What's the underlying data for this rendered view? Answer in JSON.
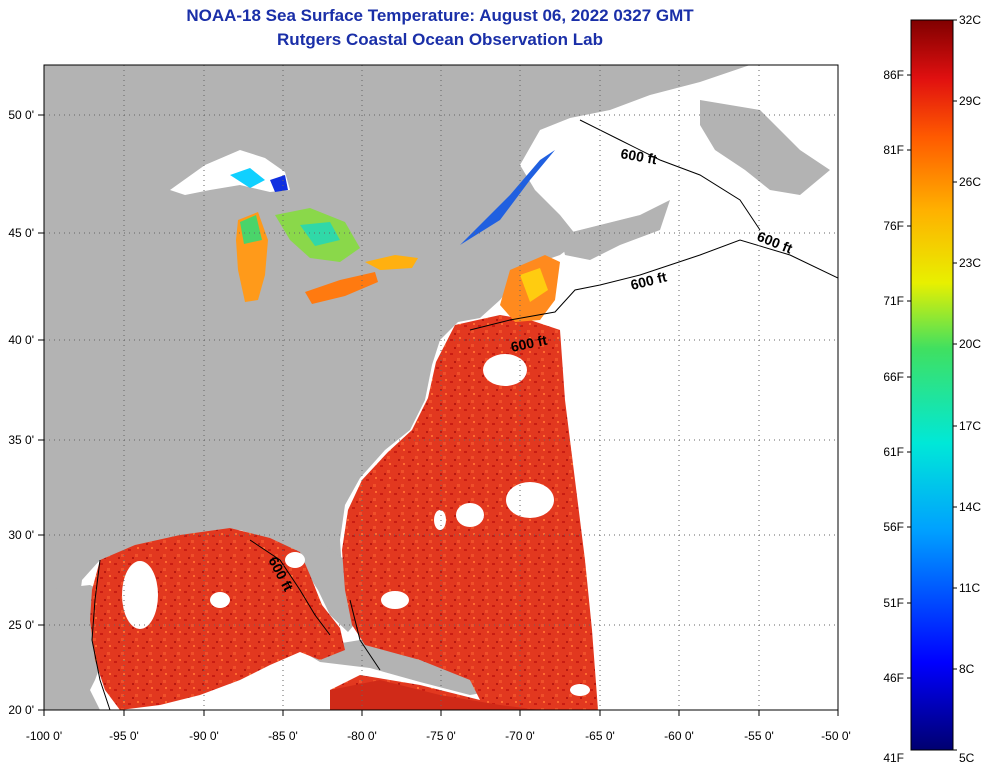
{
  "title_line1": "NOAA-18 Sea Surface Temperature:  August 06, 2022 0327 GMT",
  "title_line2": "Rutgers Coastal Ocean Observation Lab",
  "x_ticks": [
    "-100 0'",
    "-95 0'",
    "-90 0'",
    "-85 0'",
    "-80 0'",
    "-75 0'",
    "-70 0'",
    "-65 0'",
    "-60 0'",
    "-55 0'",
    "-50 0'"
  ],
  "y_ticks": [
    "50 0'",
    "45 0'",
    "40 0'",
    "35 0'",
    "30 0'",
    "25 0'",
    "20 0'"
  ],
  "colorbar": {
    "celsius": [
      "32C",
      "29C",
      "26C",
      "23C",
      "20C",
      "17C",
      "14C",
      "11C",
      "8C",
      "5C"
    ],
    "fahrenheit": [
      "86F",
      "81F",
      "76F",
      "71F",
      "66F",
      "61F",
      "56F",
      "51F",
      "46F",
      "41F"
    ]
  },
  "contour_label": "600 ft",
  "colors": {
    "land": "#b3b3b3",
    "ocean_warm": "#e0321e",
    "no_data": "#ffffff",
    "title": "#1a2fa8"
  }
}
